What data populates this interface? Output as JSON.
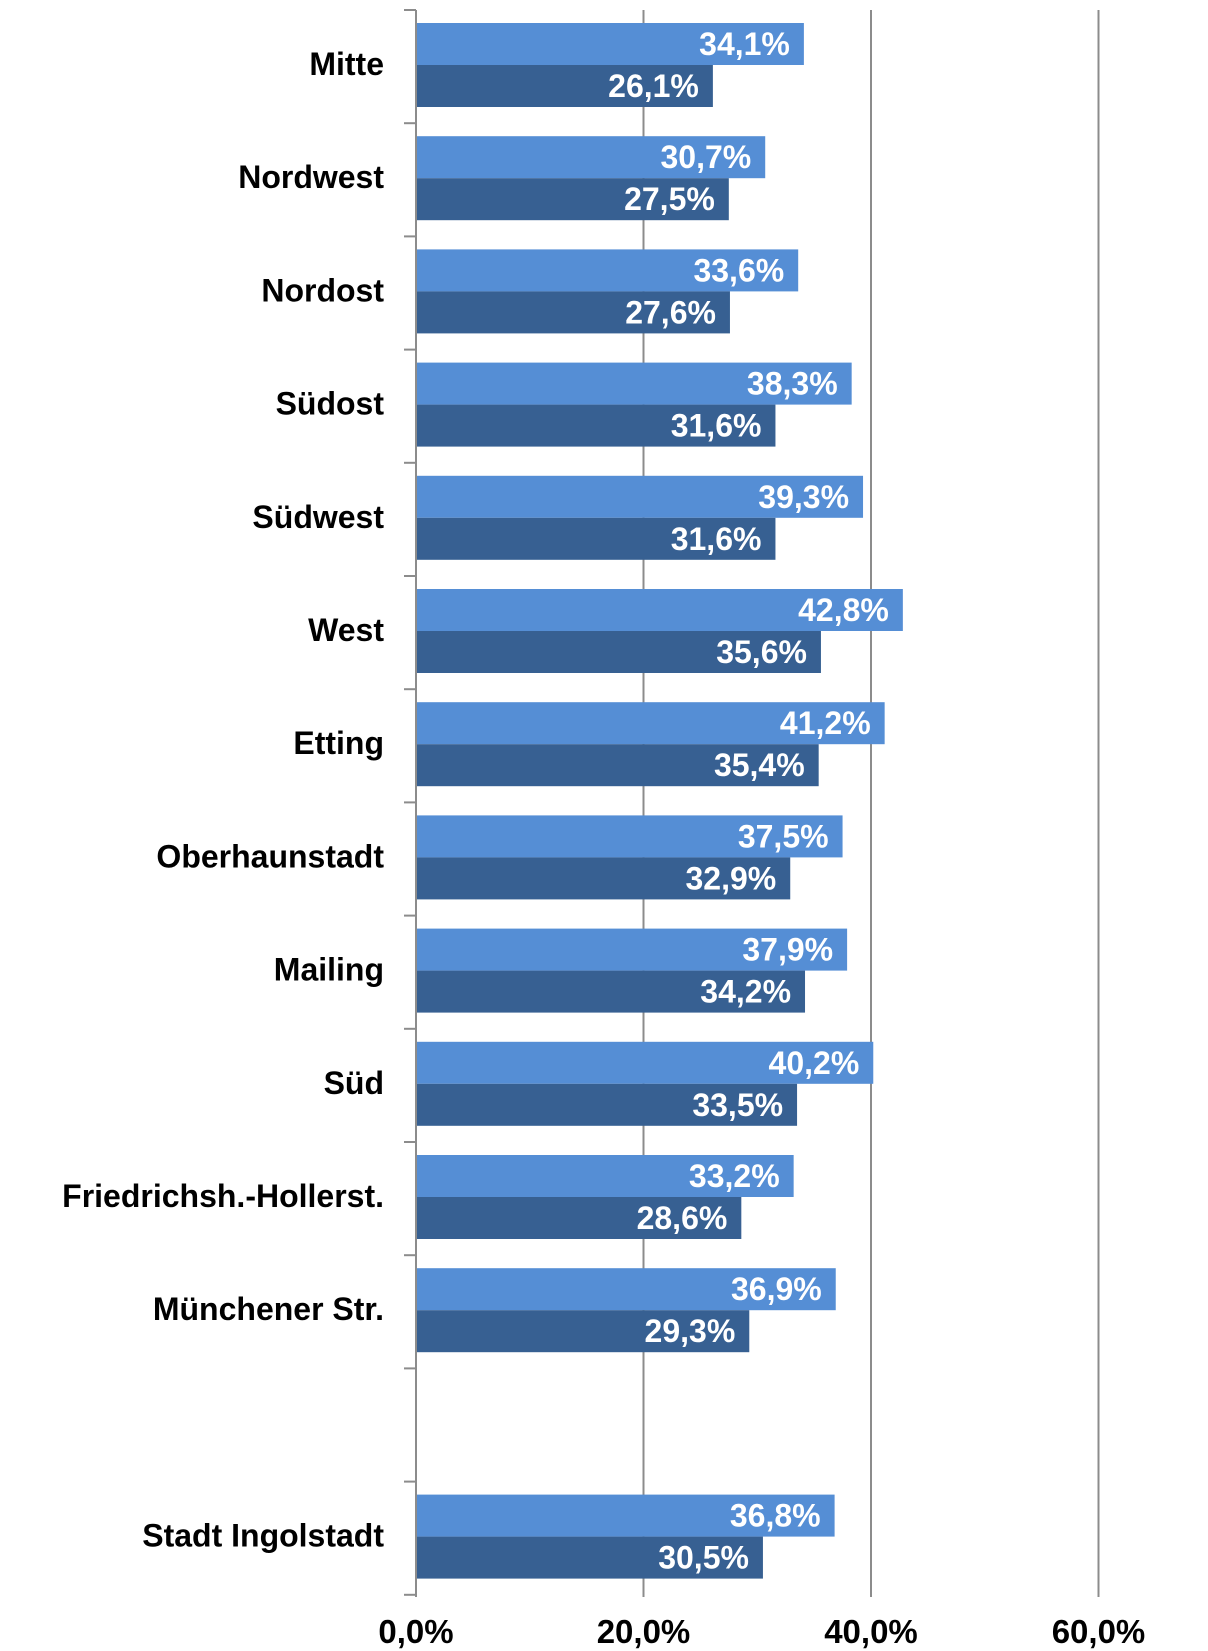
{
  "chart_data": {
    "type": "bar",
    "orientation": "horizontal",
    "categories": [
      "Mitte",
      "Nordwest",
      "Nordost",
      "Südost",
      "Südwest",
      "West",
      "Etting",
      "Oberhaunstadt",
      "Mailing",
      "Süd",
      "Friedrichsh.-Hollerst.",
      "Münchener Str.",
      "",
      "Stadt Ingolstadt"
    ],
    "series": [
      {
        "color": "#558ed5",
        "values": [
          34.1,
          30.7,
          33.6,
          38.3,
          39.3,
          42.8,
          41.2,
          37.5,
          37.9,
          40.2,
          33.2,
          36.9,
          null,
          36.8
        ],
        "labels": [
          "34,1%",
          "30,7%",
          "33,6%",
          "38,3%",
          "39,3%",
          "42,8%",
          "41,2%",
          "37,5%",
          "37,9%",
          "40,2%",
          "33,2%",
          "36,9%",
          "",
          "36,8%"
        ]
      },
      {
        "color": "#376092",
        "values": [
          26.1,
          27.5,
          27.6,
          31.6,
          31.6,
          35.6,
          35.4,
          32.9,
          34.2,
          33.5,
          28.6,
          29.3,
          null,
          30.5
        ],
        "labels": [
          "26,1%",
          "27,5%",
          "27,6%",
          "31,6%",
          "31,6%",
          "35,6%",
          "35,4%",
          "32,9%",
          "34,2%",
          "33,5%",
          "28,6%",
          "29,3%",
          "",
          "30,5%"
        ]
      }
    ],
    "xlim": [
      0,
      60
    ],
    "xticks": [
      0,
      20,
      40,
      60
    ],
    "xtick_labels": [
      "0,0%",
      "20,0%",
      "40,0%",
      "60,0%"
    ],
    "grid": "vertical",
    "legend": "none"
  }
}
